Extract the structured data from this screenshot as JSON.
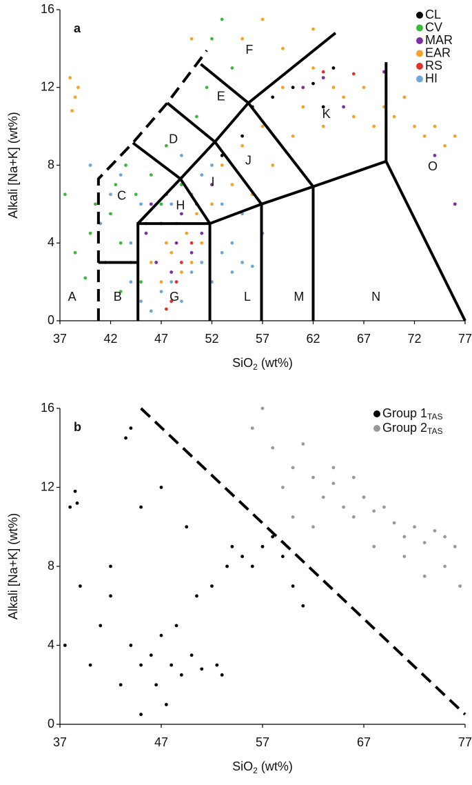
{
  "chart_data": [
    {
      "type": "scatter",
      "panel_label": "a",
      "xlabel": {
        "text": "SiO",
        "sub": "2",
        "rest": " (wt%)"
      },
      "ylabel": "Alkali [Na+K] (wt%)",
      "xlim": [
        37,
        77
      ],
      "ylim": [
        0,
        16
      ],
      "xticks": [
        37,
        42,
        47,
        52,
        57,
        62,
        67,
        72,
        77
      ],
      "yticks": [
        0,
        4,
        8,
        12,
        16
      ],
      "legend": "upper right",
      "series": [
        {
          "name": "CL",
          "color": "#000000",
          "x": [
            56,
            58,
            60,
            62,
            63,
            64,
            53,
            55
          ],
          "values": [
            11,
            11.5,
            12,
            12.2,
            11,
            13,
            8.5,
            9.5
          ]
        },
        {
          "name": "CV",
          "color": "#3db83d",
          "x": [
            37.5,
            38.5,
            39.5,
            40,
            40.5,
            41.5,
            42,
            42.5,
            43,
            43,
            43.5,
            44,
            44.5,
            45,
            45.5,
            46,
            47,
            47.5,
            49,
            50.5,
            51.5,
            52,
            53,
            54
          ],
          "values": [
            6.5,
            3.5,
            2.2,
            4.5,
            6,
            3,
            5.5,
            7,
            4,
            1.5,
            8,
            3,
            6.5,
            2,
            5,
            7.5,
            6,
            9,
            7,
            10.5,
            12,
            14.5,
            15.5,
            13
          ]
        },
        {
          "name": "MAR",
          "color": "#7b2fa0",
          "x": [
            45.5,
            46,
            46.5,
            47,
            47.5,
            48,
            48.5,
            49,
            50,
            50.5,
            51,
            52,
            61,
            63,
            65,
            69,
            76,
            74
          ],
          "values": [
            4.5,
            6,
            3,
            5,
            6.5,
            2.5,
            4,
            5.5,
            3.5,
            6,
            4.5,
            7,
            12,
            12.5,
            11,
            12.8,
            6,
            8.5
          ]
        },
        {
          "name": "EAR",
          "color": "#f7a226",
          "x": [
            38.5,
            38.8,
            38.2,
            38,
            46,
            47,
            47.5,
            48,
            48.5,
            49,
            49.5,
            50,
            50.5,
            51,
            52,
            53,
            54,
            55,
            56,
            57,
            58,
            59,
            60,
            61,
            62,
            63,
            64,
            65,
            66,
            67,
            68,
            69,
            70,
            71,
            72,
            73,
            74,
            75,
            76,
            57,
            59,
            55,
            50,
            62
          ],
          "values": [
            11.5,
            12,
            10.8,
            12.5,
            3,
            2,
            4,
            3.5,
            5,
            2.5,
            4.5,
            3,
            5.5,
            4,
            6,
            8,
            7,
            9,
            6.5,
            10,
            8,
            12,
            9.5,
            11,
            13,
            10,
            12,
            11.5,
            10.5,
            12,
            10,
            11,
            10.5,
            11.5,
            10,
            9.5,
            10,
            9,
            9.5,
            15.5,
            14,
            14.5,
            14.5,
            15
          ]
        },
        {
          "name": "RS",
          "color": "#e0322a",
          "x": [
            48,
            47.5,
            49,
            50,
            48.5,
            63,
            66
          ],
          "values": [
            1,
            0.6,
            3,
            4,
            2,
            12.8,
            12.7
          ]
        },
        {
          "name": "HI",
          "color": "#6ea6d6",
          "x": [
            40,
            41,
            42,
            43,
            44,
            45,
            46,
            47,
            48,
            49,
            50,
            51,
            52,
            53,
            54,
            55,
            56,
            50,
            51,
            52,
            53,
            49,
            54,
            48,
            45,
            44,
            55,
            57
          ],
          "values": [
            8,
            5,
            6.5,
            7.5,
            2,
            1,
            0.5,
            1.5,
            2,
            1,
            2.5,
            3,
            2,
            3.5,
            2.5,
            3,
            2.8,
            6.5,
            7.5,
            8,
            6,
            8.5,
            4,
            6,
            6,
            4,
            5.5,
            4.5
          ]
        }
      ],
      "boundaries": [
        {
          "style": "dashed",
          "x": [
            40.8,
            40.8,
            44.2,
            47.6,
            51.5
          ],
          "values": [
            0,
            7.3,
            9.15,
            11.2,
            13.9
          ]
        },
        {
          "style": "solid",
          "x": [
            40.8,
            44.7
          ],
          "values": [
            3,
            3
          ]
        },
        {
          "style": "solid",
          "x": [
            44.7,
            44.7,
            51.8,
            51.8
          ],
          "values": [
            0,
            5,
            5,
            0
          ]
        },
        {
          "style": "solid",
          "x": [
            44.7,
            48.9,
            52.3,
            55.6,
            64.2
          ],
          "values": [
            5,
            7.3,
            9.2,
            11.2,
            14.8
          ]
        },
        {
          "style": "solid",
          "x": [
            44.2,
            48.9,
            51.8
          ],
          "values": [
            9.15,
            7.3,
            5
          ]
        },
        {
          "style": "solid",
          "x": [
            47.6,
            52.3,
            56.9,
            56.9
          ],
          "values": [
            11.2,
            9.2,
            6,
            0
          ]
        },
        {
          "style": "solid",
          "x": [
            50.9,
            55.6,
            62,
            62
          ],
          "values": [
            13.2,
            11.2,
            6.9,
            0
          ]
        },
        {
          "style": "solid",
          "x": [
            51.8,
            56.9,
            62,
            69.2,
            77
          ],
          "values": [
            5,
            6,
            6.9,
            8.2,
            0
          ]
        },
        {
          "style": "solid",
          "x": [
            69.2,
            69.2
          ],
          "values": [
            8.2,
            13.3
          ]
        }
      ],
      "annotations": [
        {
          "text": "A",
          "x": 38.2,
          "y": 1.2
        },
        {
          "text": "B",
          "x": 42.7,
          "y": 1.2
        },
        {
          "text": "G",
          "x": 48.3,
          "y": 1.2
        },
        {
          "text": "L",
          "x": 55.5,
          "y": 1.2
        },
        {
          "text": "M",
          "x": 60.6,
          "y": 1.2
        },
        {
          "text": "N",
          "x": 68.2,
          "y": 1.2
        },
        {
          "text": "O",
          "x": 73.8,
          "y": 7.9
        },
        {
          "text": "K",
          "x": 63.3,
          "y": 10.6
        },
        {
          "text": "J",
          "x": 55.6,
          "y": 8.2
        },
        {
          "text": "I",
          "x": 52.1,
          "y": 7.1
        },
        {
          "text": "H",
          "x": 48.9,
          "y": 5.9
        },
        {
          "text": "C",
          "x": 43.1,
          "y": 6.4
        },
        {
          "text": "D",
          "x": 48.2,
          "y": 9.3
        },
        {
          "text": "E",
          "x": 52.9,
          "y": 11.5
        },
        {
          "text": "F",
          "x": 55.7,
          "y": 13.9
        }
      ]
    },
    {
      "type": "scatter",
      "panel_label": "b",
      "xlabel": {
        "text": "SiO",
        "sub": "2",
        "rest": " (wt%)"
      },
      "ylabel": "Alkali [Na+K] (wt%)",
      "xlim": [
        37,
        77
      ],
      "ylim": [
        0,
        16
      ],
      "xticks": [
        37,
        47,
        57,
        67,
        77
      ],
      "yticks": [
        0,
        4,
        8,
        12,
        16
      ],
      "legend": "upper right",
      "series": [
        {
          "name": "Group 1",
          "name_sub": "TAS",
          "color": "#000000",
          "x": [
            37.5,
            38,
            38.5,
            38.7,
            39,
            40,
            41,
            42,
            43,
            43.5,
            44,
            45,
            45,
            46,
            46.5,
            47,
            47.5,
            48,
            48.5,
            49,
            49.5,
            50,
            50.5,
            51,
            52,
            52.5,
            53,
            53.5,
            54,
            55,
            56,
            57,
            58,
            59,
            60,
            61,
            45,
            47,
            44,
            42
          ],
          "values": [
            4,
            11,
            11.8,
            11.2,
            7,
            3,
            5,
            6.5,
            2,
            14.5,
            4,
            3,
            0.5,
            3.5,
            2,
            4.5,
            1,
            3,
            5,
            2.5,
            10,
            3.5,
            6.5,
            2.8,
            7,
            3,
            2.5,
            8,
            9,
            8.5,
            8,
            9,
            9.5,
            8.5,
            7,
            6,
            11,
            12,
            15,
            8
          ]
        },
        {
          "name": "Group 2",
          "name_sub": "TAS",
          "color": "#999999",
          "x": [
            56,
            57,
            58,
            59,
            60,
            61,
            62,
            63,
            64,
            65,
            66,
            67,
            68,
            69,
            70,
            71,
            72,
            73,
            74,
            75,
            76,
            76.5,
            75,
            73,
            71,
            68,
            66,
            62,
            60,
            64
          ],
          "values": [
            15,
            16,
            14,
            12,
            13,
            14.2,
            12.5,
            11.5,
            12.2,
            11,
            10.5,
            11.5,
            10.8,
            11,
            10.2,
            9.5,
            10,
            9.2,
            9.8,
            9.5,
            9,
            7,
            8,
            7.5,
            8.5,
            9,
            12.5,
            10,
            10.5,
            13
          ]
        }
      ],
      "boundaries": [
        {
          "style": "dashed",
          "x": [
            45,
            77
          ],
          "values": [
            16,
            0.5
          ]
        }
      ]
    }
  ]
}
